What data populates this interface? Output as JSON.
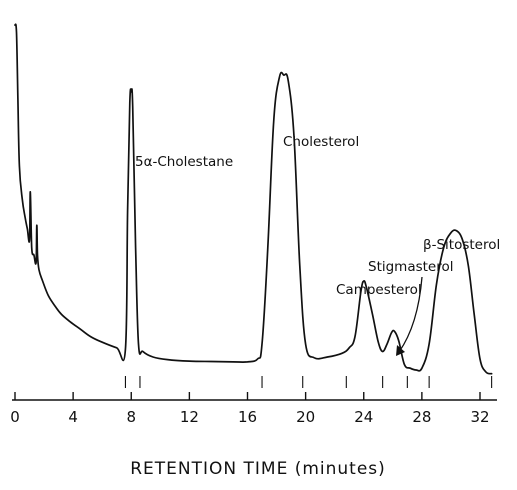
{
  "chart_data": {
    "type": "line",
    "title": "",
    "xlabel": "RETENTION TIME  (minutes)",
    "ylabel": "",
    "xlim": [
      0,
      34
    ],
    "x_ticks": [
      0,
      4,
      8,
      12,
      16,
      20,
      24,
      28,
      32
    ],
    "x_tick_labels": [
      "0",
      "4",
      "8",
      "12",
      "16",
      "20",
      "24",
      "28",
      "32"
    ],
    "grid": false,
    "legend": "none",
    "line_color": "#111111",
    "background": "#ffffff",
    "peaks": [
      {
        "name": "5α-Cholestane",
        "retention_time_min": 8.0
      },
      {
        "name": "Cholesterol",
        "retention_time_min": 18.5
      },
      {
        "name": "Campesterol",
        "retention_time_min": 24.0
      },
      {
        "name": "Stigmasterol",
        "retention_time_min": 26.1
      },
      {
        "name": "β-Sitosterol",
        "retention_time_min": 30.4
      }
    ],
    "series": [
      {
        "x": [
          0.0,
          0.1,
          0.2,
          0.3,
          0.5,
          0.7,
          0.85,
          1.0,
          1.05,
          1.15,
          1.3,
          1.45,
          1.5,
          1.55,
          1.65,
          1.9,
          2.3,
          2.8,
          3.2,
          3.8,
          4.5,
          5.2,
          6.0,
          7.0,
          7.6,
          7.75,
          7.9,
          8.0,
          8.1,
          8.3,
          8.5,
          8.8,
          9.5,
          10.5,
          12.0,
          13.5,
          15.0,
          16.0,
          16.7,
          17.0,
          17.4,
          17.8,
          18.2,
          18.5,
          18.8,
          19.2,
          19.6,
          20.0,
          20.6,
          21.5,
          22.5,
          23.0,
          23.4,
          23.8,
          24.0,
          24.2,
          24.6,
          25.0,
          25.3,
          25.6,
          25.9,
          26.1,
          26.4,
          26.8,
          27.2,
          27.6,
          28.0,
          28.5,
          29.0,
          29.5,
          30.0,
          30.4,
          30.8,
          31.2,
          31.6,
          32.0,
          32.4,
          32.8
        ],
        "y": [
          100,
          98,
          80,
          62,
          53,
          48,
          45,
          42,
          55,
          40,
          38,
          36,
          46,
          38,
          34,
          31,
          27,
          24,
          22,
          20,
          18,
          16,
          14.5,
          13,
          12.5,
          50,
          79,
          82,
          78,
          40,
          14,
          12,
          10.5,
          9.8,
          9.4,
          9.3,
          9.2,
          9.2,
          10,
          14,
          40,
          74,
          86,
          86.5,
          85,
          70,
          35,
          14,
          10.3,
          10.5,
          11.5,
          13,
          16,
          28,
          31,
          29,
          22,
          14.5,
          12,
          14,
          17,
          17.5,
          15,
          8.5,
          7.5,
          7,
          7.5,
          14,
          30,
          40,
          44,
          44.5,
          42,
          35,
          22,
          10,
          6.5,
          6
        ]
      }
    ]
  }
}
